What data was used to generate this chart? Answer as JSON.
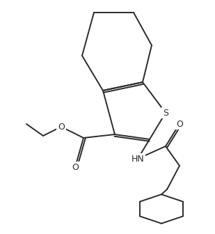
{
  "background_color": "#ffffff",
  "line_color": "#2a2a2a",
  "line_width": 1.4,
  "figsize": [
    3.09,
    3.36
  ],
  "dpi": 100,
  "S_label": "S",
  "O_label": "O",
  "HN_label": "HN",
  "font_size": 8.5
}
